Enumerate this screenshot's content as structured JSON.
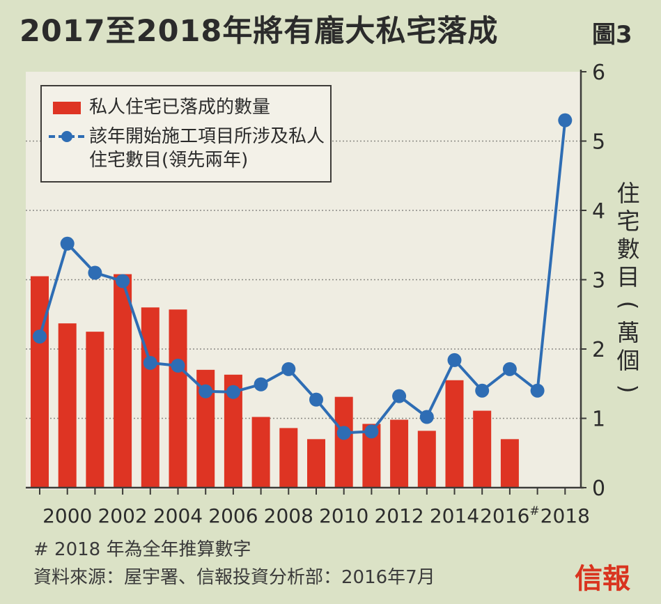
{
  "title": "2017至2018年將有龐大私宅落成",
  "figure_number": "圖3",
  "footnote": "# 2018 年為全年推算數字",
  "source": "資料來源：屋宇署、信報投資分析部：2016年7月",
  "logo_text": "信報",
  "colors": {
    "bar": "#de3423",
    "line": "#2e6db4",
    "grid": "#8a8a84",
    "background": "#dbe2c6"
  },
  "chart_data": {
    "type": "bar",
    "title": "2017至2018年將有龐大私宅落成",
    "ylabel": "住宅數目(萬個)",
    "ylim": [
      0,
      6
    ],
    "yticks": [
      "0",
      "1",
      "2",
      "3",
      "4",
      "5",
      "6"
    ],
    "categories": [
      "1999",
      "2000",
      "2001",
      "2002",
      "2003",
      "2004",
      "2005",
      "2006",
      "2007",
      "2008",
      "2009",
      "2010",
      "2011",
      "2012",
      "2013",
      "2014",
      "2015",
      "2016",
      "2017",
      "2018"
    ],
    "xtick_labels": [
      "",
      "2000",
      "",
      "2002",
      "",
      "2004",
      "",
      "2006",
      "",
      "2008",
      "",
      "2010",
      "",
      "2012",
      "",
      "2014",
      "",
      "2016#",
      "",
      "2018"
    ],
    "legend_position": "top-left",
    "grid": true,
    "series": [
      {
        "name": "私人住宅已落成的數量",
        "type": "bar",
        "values": [
          3.05,
          2.37,
          2.25,
          3.08,
          2.6,
          2.57,
          1.7,
          1.63,
          1.02,
          0.86,
          0.7,
          1.31,
          0.92,
          0.98,
          0.82,
          1.55,
          1.11,
          0.7,
          null,
          null
        ]
      },
      {
        "name": "該年開始施工項目所涉及私人住宅數目(領先兩年)",
        "type": "line",
        "values": [
          2.18,
          3.52,
          3.1,
          2.98,
          1.8,
          1.76,
          1.39,
          1.38,
          1.49,
          1.71,
          1.27,
          0.79,
          0.81,
          1.32,
          1.02,
          1.84,
          1.4,
          1.71,
          1.4,
          5.3
        ]
      }
    ]
  }
}
